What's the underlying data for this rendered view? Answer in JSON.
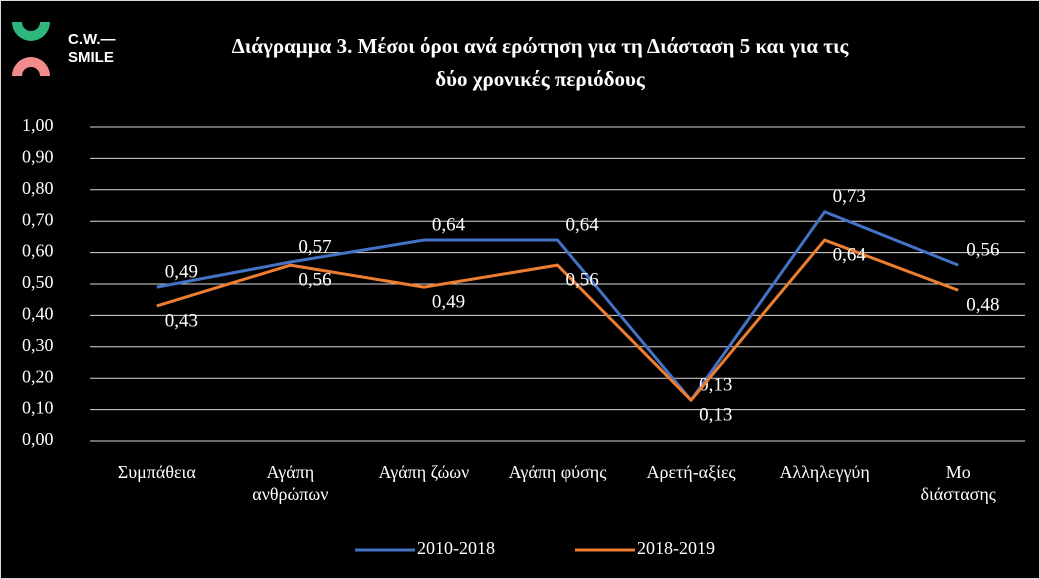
{
  "logo": {
    "line1": "C.W.—",
    "line2": "SMILE"
  },
  "chart_data": {
    "type": "line",
    "title": [
      "Διάγραμμα 3. Μέσοι όροι ανά ερώτηση για τη Διάσταση 5 και για τις",
      "δύο χρονικές περιόδους"
    ],
    "categories": [
      "Συμπάθεια",
      "Αγάπη\nανθρώπων",
      "Αγάπη ζώων",
      "Αγάπη φύσης",
      "Αρετή-αξίες",
      "Αλληλεγγύη",
      "Μο\nδιάστασης"
    ],
    "series": [
      {
        "name": "2010-2018",
        "color": "#4472c4",
        "values": [
          0.49,
          0.57,
          0.64,
          0.64,
          0.13,
          0.73,
          0.56
        ],
        "value_labels": [
          "0,49",
          "0,57",
          "0,64",
          "0,64",
          "0,13",
          "0,73",
          "0,56"
        ]
      },
      {
        "name": "2018-2019",
        "color": "#ed7d31",
        "values": [
          0.43,
          0.56,
          0.49,
          0.56,
          0.13,
          0.64,
          0.48
        ],
        "value_labels": [
          "0,43",
          "0,56",
          "0,49",
          "0,56",
          "0,13",
          "0,64",
          "0,48"
        ]
      }
    ],
    "ylim": [
      0,
      1
    ],
    "yticks": [
      {
        "value": 0,
        "label": "0,00"
      },
      {
        "value": 0.1,
        "label": "0,10"
      },
      {
        "value": 0.2,
        "label": "0,20"
      },
      {
        "value": 0.3,
        "label": "0,30"
      },
      {
        "value": 0.4,
        "label": "0,40"
      },
      {
        "value": 0.5,
        "label": "0,50"
      },
      {
        "value": 0.6,
        "label": "0,60"
      },
      {
        "value": 0.7,
        "label": "0,70"
      },
      {
        "value": 0.8,
        "label": "0,80"
      },
      {
        "value": 0.9,
        "label": "0,90"
      },
      {
        "value": 1,
        "label": "1,00"
      }
    ],
    "grid": true,
    "legend": "bottom"
  }
}
